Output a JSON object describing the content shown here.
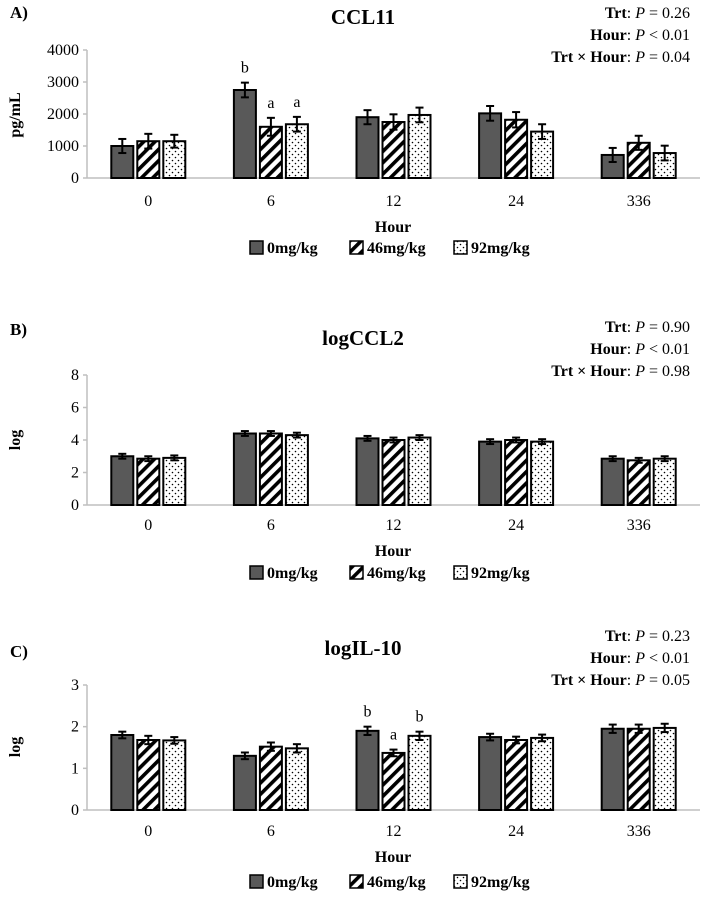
{
  "chart_data": [
    {
      "type": "bar",
      "panel_label": "A)",
      "title": "CCL11",
      "ylabel": "pg/mL",
      "xlabel": "Hour",
      "ylim": [
        0,
        4000
      ],
      "yticks": [
        "0",
        "1000",
        "2000",
        "3000",
        "4000"
      ],
      "categories": [
        "0",
        "6",
        "12",
        "24",
        "336"
      ],
      "stats": [
        {
          "term": "Trt",
          "p_op": "= 0.26"
        },
        {
          "term": "Hour",
          "p_op": "< 0.01"
        },
        {
          "term": "Trt ×  Hour",
          "p_op": "= 0.04"
        }
      ],
      "series": [
        {
          "name": "0mg/kg",
          "values": [
            1000,
            2750,
            1900,
            2020,
            720
          ],
          "errors": [
            220,
            230,
            220,
            230,
            220
          ]
        },
        {
          "name": "46mg/kg",
          "values": [
            1150,
            1600,
            1750,
            1820,
            1100
          ],
          "errors": [
            230,
            280,
            240,
            240,
            220
          ]
        },
        {
          "name": "92mg/kg",
          "values": [
            1150,
            1680,
            1970,
            1450,
            780
          ],
          "errors": [
            200,
            230,
            230,
            230,
            230
          ]
        }
      ],
      "letters": [
        {
          "category": 1,
          "series": 0,
          "text": "b"
        },
        {
          "category": 1,
          "series": 1,
          "text": "a"
        },
        {
          "category": 1,
          "series": 2,
          "text": "a"
        }
      ]
    },
    {
      "type": "bar",
      "panel_label": "B)",
      "title": "logCCL2",
      "ylabel": "log",
      "xlabel": "Hour",
      "ylim": [
        0,
        8
      ],
      "yticks": [
        "0",
        "2",
        "4",
        "6",
        "8"
      ],
      "categories": [
        "0",
        "6",
        "12",
        "24",
        "336"
      ],
      "stats": [
        {
          "term": "Trt",
          "p_op": "= 0.90"
        },
        {
          "term": "Hour",
          "p_op": "< 0.01"
        },
        {
          "term": "Trt × Hour",
          "p_op": "= 0.98"
        }
      ],
      "series": [
        {
          "name": "0mg/kg",
          "values": [
            3.0,
            4.4,
            4.1,
            3.9,
            2.85
          ],
          "errors": [
            0.15,
            0.15,
            0.15,
            0.15,
            0.15
          ]
        },
        {
          "name": "46mg/kg",
          "values": [
            2.85,
            4.4,
            4.0,
            4.0,
            2.75
          ],
          "errors": [
            0.15,
            0.15,
            0.15,
            0.15,
            0.15
          ]
        },
        {
          "name": "92mg/kg",
          "values": [
            2.9,
            4.3,
            4.15,
            3.9,
            2.85
          ],
          "errors": [
            0.15,
            0.15,
            0.15,
            0.15,
            0.15
          ]
        }
      ],
      "letters": []
    },
    {
      "type": "bar",
      "panel_label": "C)",
      "title": "logIL-10",
      "ylabel": "log",
      "xlabel": "Hour",
      "ylim": [
        0,
        3
      ],
      "yticks": [
        "0",
        "1",
        "2",
        "3"
      ],
      "categories": [
        "0",
        "6",
        "12",
        "24",
        "336"
      ],
      "stats": [
        {
          "term": "Trt",
          "p_op": "= 0.23"
        },
        {
          "term": "Hour",
          "p_op": "< 0.01"
        },
        {
          "term": "Trt × Hour",
          "p_op": "= 0.05"
        }
      ],
      "series": [
        {
          "name": "0mg/kg",
          "values": [
            1.8,
            1.3,
            1.9,
            1.75,
            1.95
          ],
          "errors": [
            0.08,
            0.08,
            0.1,
            0.08,
            0.1
          ]
        },
        {
          "name": "46mg/kg",
          "values": [
            1.68,
            1.52,
            1.37,
            1.68,
            1.95
          ],
          "errors": [
            0.1,
            0.1,
            0.08,
            0.08,
            0.1
          ]
        },
        {
          "name": "92mg/kg",
          "values": [
            1.67,
            1.48,
            1.78,
            1.73,
            1.97
          ],
          "errors": [
            0.08,
            0.1,
            0.1,
            0.08,
            0.1
          ]
        }
      ],
      "letters": [
        {
          "category": 2,
          "series": 0,
          "text": "b"
        },
        {
          "category": 2,
          "series": 1,
          "text": "a"
        },
        {
          "category": 2,
          "series": 2,
          "text": "b"
        }
      ]
    }
  ],
  "legend": [
    "0mg/kg",
    "46mg/kg",
    "92mg/kg"
  ],
  "colors": {
    "dark_bar": "#595959",
    "axis": "#bfbfbf",
    "stroke": "#000000",
    "background": "#ffffff"
  },
  "patterns": [
    "solid-dark",
    "diagonal-stripes",
    "dots"
  ]
}
